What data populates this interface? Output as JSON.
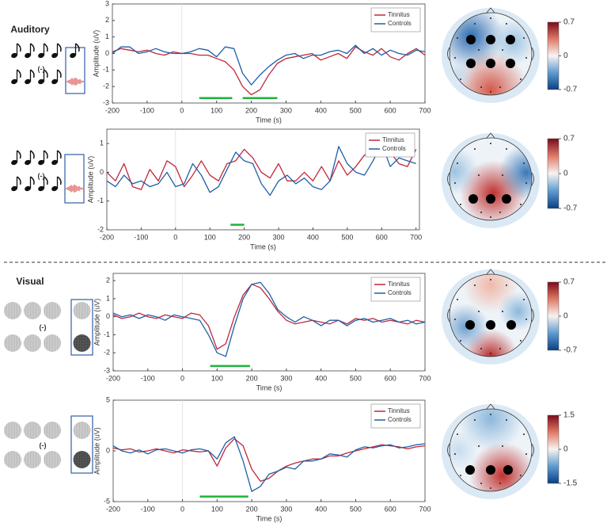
{
  "sections": [
    "Auditory",
    "Visual"
  ],
  "chart_data": [
    {
      "type": "line",
      "condition_label": "(-)",
      "xlabel": "Time (s)",
      "ylabel": "Amplitude (uV)",
      "xlim": [
        -200,
        700
      ],
      "xticks": [
        -200,
        -100,
        0,
        100,
        200,
        300,
        400,
        500,
        600,
        700
      ],
      "ylim": [
        -3,
        3
      ],
      "yticks": [
        -3,
        -2,
        -1,
        0,
        1,
        2,
        3
      ],
      "legend": "upper right",
      "x": [
        -200,
        -175,
        -150,
        -125,
        -100,
        -75,
        -50,
        -25,
        0,
        25,
        50,
        75,
        100,
        125,
        150,
        175,
        200,
        225,
        250,
        275,
        300,
        325,
        350,
        375,
        400,
        425,
        450,
        475,
        500,
        525,
        550,
        575,
        600,
        625,
        650,
        675,
        700
      ],
      "series": [
        {
          "name": "Tinnitus",
          "color": "#c0283a",
          "values": [
            0.1,
            0.3,
            0.2,
            0.1,
            0.2,
            0,
            -0.1,
            0.1,
            0,
            0,
            -0.1,
            -0.1,
            -0.3,
            -0.5,
            -1.0,
            -2.0,
            -2.5,
            -2.2,
            -1.3,
            -0.6,
            -0.3,
            -0.2,
            -0.1,
            0,
            -0.4,
            -0.2,
            0,
            -0.3,
            0.4,
            0.1,
            -0.1,
            0.3,
            -0.2,
            -0.4,
            0,
            0.3,
            -0.1
          ]
        },
        {
          "name": "Controls",
          "color": "#1f5fa8",
          "values": [
            0,
            0.4,
            0.4,
            0,
            0.1,
            0.3,
            0.1,
            0,
            0,
            0.1,
            0.3,
            0.2,
            -0.2,
            0.4,
            0.3,
            -1.2,
            -1.9,
            -1.3,
            -0.8,
            -0.4,
            -0.1,
            0,
            -0.3,
            -0.1,
            -0.1,
            0.1,
            0.2,
            0,
            0.5,
            0,
            0.3,
            -0.1,
            0.2,
            0,
            -0.1,
            0.2,
            0.1
          ]
        }
      ],
      "significance": [
        [
          50,
          145
        ],
        [
          175,
          275
        ]
      ],
      "significance_color": "#1db33a",
      "colorbar": {
        "lim": [
          -0.7,
          0.7
        ],
        "ticks": [
          -0.7,
          0,
          0.7
        ]
      }
    },
    {
      "type": "line",
      "condition_label": "(-)",
      "xlabel": "Time (s)",
      "ylabel": "Amplitude (uV)",
      "xlim": [
        -200,
        710
      ],
      "xticks": [
        -200,
        -100,
        0,
        100,
        200,
        300,
        400,
        500,
        600,
        700
      ],
      "ylim": [
        -2,
        1.5
      ],
      "yticks": [
        -2,
        -1,
        0,
        1
      ],
      "legend": "upper right",
      "x": [
        -200,
        -175,
        -150,
        -125,
        -100,
        -75,
        -50,
        -25,
        0,
        25,
        50,
        75,
        100,
        125,
        150,
        175,
        200,
        225,
        250,
        275,
        300,
        325,
        350,
        375,
        400,
        425,
        450,
        475,
        500,
        525,
        550,
        575,
        600,
        625,
        650,
        675,
        700
      ],
      "series": [
        {
          "name": "Tinnitus",
          "color": "#c0283a",
          "values": [
            0,
            -0.3,
            0.3,
            -0.5,
            -0.6,
            0.1,
            -0.3,
            0.4,
            0.2,
            -0.5,
            -0.1,
            0.4,
            -0.1,
            -0.3,
            0.3,
            0.4,
            0.8,
            0.5,
            0,
            -0.2,
            0.3,
            -0.3,
            -0.3,
            0,
            -0.3,
            0.2,
            -0.3,
            0.4,
            -0.1,
            0.2,
            0.6,
            0.7,
            0.9,
            0.7,
            0.3,
            0.2,
            0.8
          ]
        },
        {
          "name": "Controls",
          "color": "#1f5fa8",
          "values": [
            -0.3,
            -0.5,
            -0.1,
            -0.4,
            -0.3,
            -0.5,
            -0.4,
            0,
            -0.5,
            -0.4,
            0.3,
            -0.1,
            -0.7,
            -0.5,
            0.1,
            0.7,
            0.4,
            0.3,
            -0.4,
            -0.8,
            -0.3,
            -0.1,
            -0.4,
            -0.2,
            -0.5,
            -0.6,
            -0.3,
            0.9,
            0.3,
            0,
            -0.1,
            0.4,
            1.0,
            0.2,
            0.5,
            0.4,
            0.3
          ]
        }
      ],
      "significance": [
        [
          160,
          200
        ]
      ],
      "significance_color": "#1db33a",
      "colorbar": {
        "lim": [
          -0.7,
          0.7
        ],
        "ticks": [
          -0.7,
          0,
          0.7
        ]
      }
    },
    {
      "type": "line",
      "condition_label": "(-)",
      "xlabel": "Time (s)",
      "ylabel": "Amplitude (uV)",
      "xlim": [
        -200,
        700
      ],
      "xticks": [
        -200,
        -100,
        0,
        100,
        200,
        300,
        400,
        500,
        600,
        700
      ],
      "ylim": [
        -3,
        2.4
      ],
      "yticks": [
        -3,
        -2,
        -1,
        0,
        1,
        2
      ],
      "legend": "upper right",
      "x": [
        -200,
        -175,
        -150,
        -125,
        -100,
        -75,
        -50,
        -25,
        0,
        25,
        50,
        75,
        100,
        125,
        150,
        175,
        200,
        225,
        250,
        275,
        300,
        325,
        350,
        375,
        400,
        425,
        450,
        475,
        500,
        525,
        550,
        575,
        600,
        625,
        650,
        675,
        700
      ],
      "series": [
        {
          "name": "Tinnitus",
          "color": "#c0283a",
          "values": [
            0.1,
            -0.1,
            0,
            0.2,
            0,
            -0.1,
            0.1,
            0,
            -0.1,
            0.2,
            0.1,
            -0.5,
            -1.8,
            -1.5,
            0,
            1.2,
            1.8,
            1.6,
            1.0,
            0.3,
            -0.2,
            -0.4,
            -0.3,
            -0.2,
            -0.3,
            -0.4,
            -0.2,
            -0.4,
            -0.1,
            -0.2,
            -0.1,
            -0.3,
            -0.2,
            -0.3,
            -0.4,
            -0.2,
            -0.3
          ]
        },
        {
          "name": "Controls",
          "color": "#1f5fa8",
          "values": [
            0.2,
            0,
            0.1,
            -0.1,
            0.1,
            0,
            -0.2,
            0.1,
            0,
            -0.1,
            -0.2,
            -1.0,
            -2.0,
            -2.2,
            -0.5,
            1.0,
            1.8,
            1.9,
            1.3,
            0.4,
            0,
            -0.3,
            0,
            -0.2,
            -0.5,
            -0.2,
            -0.2,
            -0.5,
            -0.2,
            -0.1,
            -0.3,
            -0.2,
            -0.1,
            -0.3,
            -0.2,
            -0.4,
            -0.3
          ]
        }
      ],
      "significance": [
        [
          80,
          195
        ]
      ],
      "significance_color": "#1db33a",
      "colorbar": {
        "lim": [
          -0.7,
          0.7
        ],
        "ticks": [
          -0.7,
          0,
          0.7
        ]
      }
    },
    {
      "type": "line",
      "condition_label": "(-)",
      "xlabel": "Time (s)",
      "ylabel": "Amplitude (uV)",
      "xlim": [
        -200,
        700
      ],
      "xticks": [
        -200,
        -100,
        0,
        100,
        200,
        300,
        400,
        500,
        600,
        700
      ],
      "ylim": [
        -5,
        5
      ],
      "yticks": [
        -5,
        0,
        5
      ],
      "legend": "upper right",
      "x": [
        -200,
        -175,
        -150,
        -125,
        -100,
        -75,
        -50,
        -25,
        0,
        25,
        50,
        75,
        100,
        125,
        150,
        175,
        200,
        225,
        250,
        275,
        300,
        325,
        350,
        375,
        400,
        425,
        450,
        475,
        500,
        525,
        550,
        575,
        600,
        625,
        650,
        675,
        700
      ],
      "series": [
        {
          "name": "Tinnitus",
          "color": "#c0283a",
          "values": [
            0.3,
            0.1,
            0.2,
            -0.1,
            0,
            0.2,
            0,
            -0.2,
            0.1,
            0,
            -0.1,
            0,
            -1.5,
            0.3,
            1.2,
            0.5,
            -1.8,
            -3.0,
            -2.7,
            -2.0,
            -1.5,
            -1.2,
            -1.0,
            -0.8,
            -0.8,
            -0.5,
            -0.5,
            -0.2,
            0,
            0.2,
            0.4,
            0.6,
            0.5,
            0.4,
            0.2,
            0.4,
            0.5
          ]
        },
        {
          "name": "Controls",
          "color": "#1f5fa8",
          "values": [
            0.5,
            0,
            -0.2,
            0.1,
            -0.3,
            0.1,
            0.2,
            0,
            -0.2,
            0.1,
            0.2,
            0,
            -0.8,
            0.8,
            1.4,
            -1.0,
            -4.0,
            -3.5,
            -2.3,
            -2.0,
            -1.6,
            -1.8,
            -1.0,
            -1.0,
            -0.8,
            -0.3,
            -0.4,
            -0.6,
            0.1,
            0.4,
            0.3,
            0.5,
            0.6,
            0.3,
            0.4,
            0.6,
            0.7
          ]
        }
      ],
      "significance": [
        [
          50,
          190
        ]
      ],
      "significance_color": "#1db33a",
      "colorbar": {
        "lim": [
          -1.5,
          1.5
        ],
        "ticks": [
          -1.5,
          0,
          1.5
        ]
      }
    }
  ]
}
